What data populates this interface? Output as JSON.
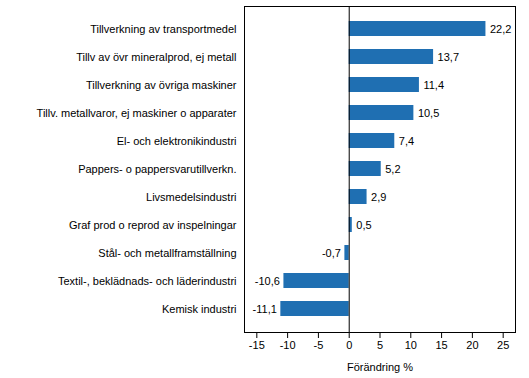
{
  "chart_data": {
    "type": "bar",
    "orientation": "horizontal",
    "categories": [
      "Tillverkning av transportmedel",
      "Tillv av övr mineralprod, ej metall",
      "Tillverkning av övriga maskiner",
      "Tillv. metallvaror, ej maskiner o apparater",
      "El- och elektronikindustri",
      "Pappers- o pappersvarutillverkn.",
      "Livsmedelsindustri",
      "Graf prod o reprod av inspelningar",
      "Stål- och metallframställning",
      "Textil-, beklädnads- och läderindustri",
      "Kemisk industri"
    ],
    "values": [
      22.2,
      13.7,
      11.4,
      10.5,
      7.4,
      5.2,
      2.9,
      0.5,
      -0.7,
      -10.6,
      -11.1
    ],
    "value_labels": [
      "22,2",
      "13,7",
      "11,4",
      "10,5",
      "7,4",
      "5,2",
      "2,9",
      "0,5",
      "-0,7",
      "-10,6",
      "-11,1"
    ],
    "data_labels": true,
    "color": "#1f6fb2",
    "x_label": "Förändring %",
    "xlim": [
      -17,
      27
    ],
    "xticks": [
      -15,
      -10,
      -5,
      0,
      5,
      10,
      15,
      20,
      25
    ],
    "grid": false
  }
}
